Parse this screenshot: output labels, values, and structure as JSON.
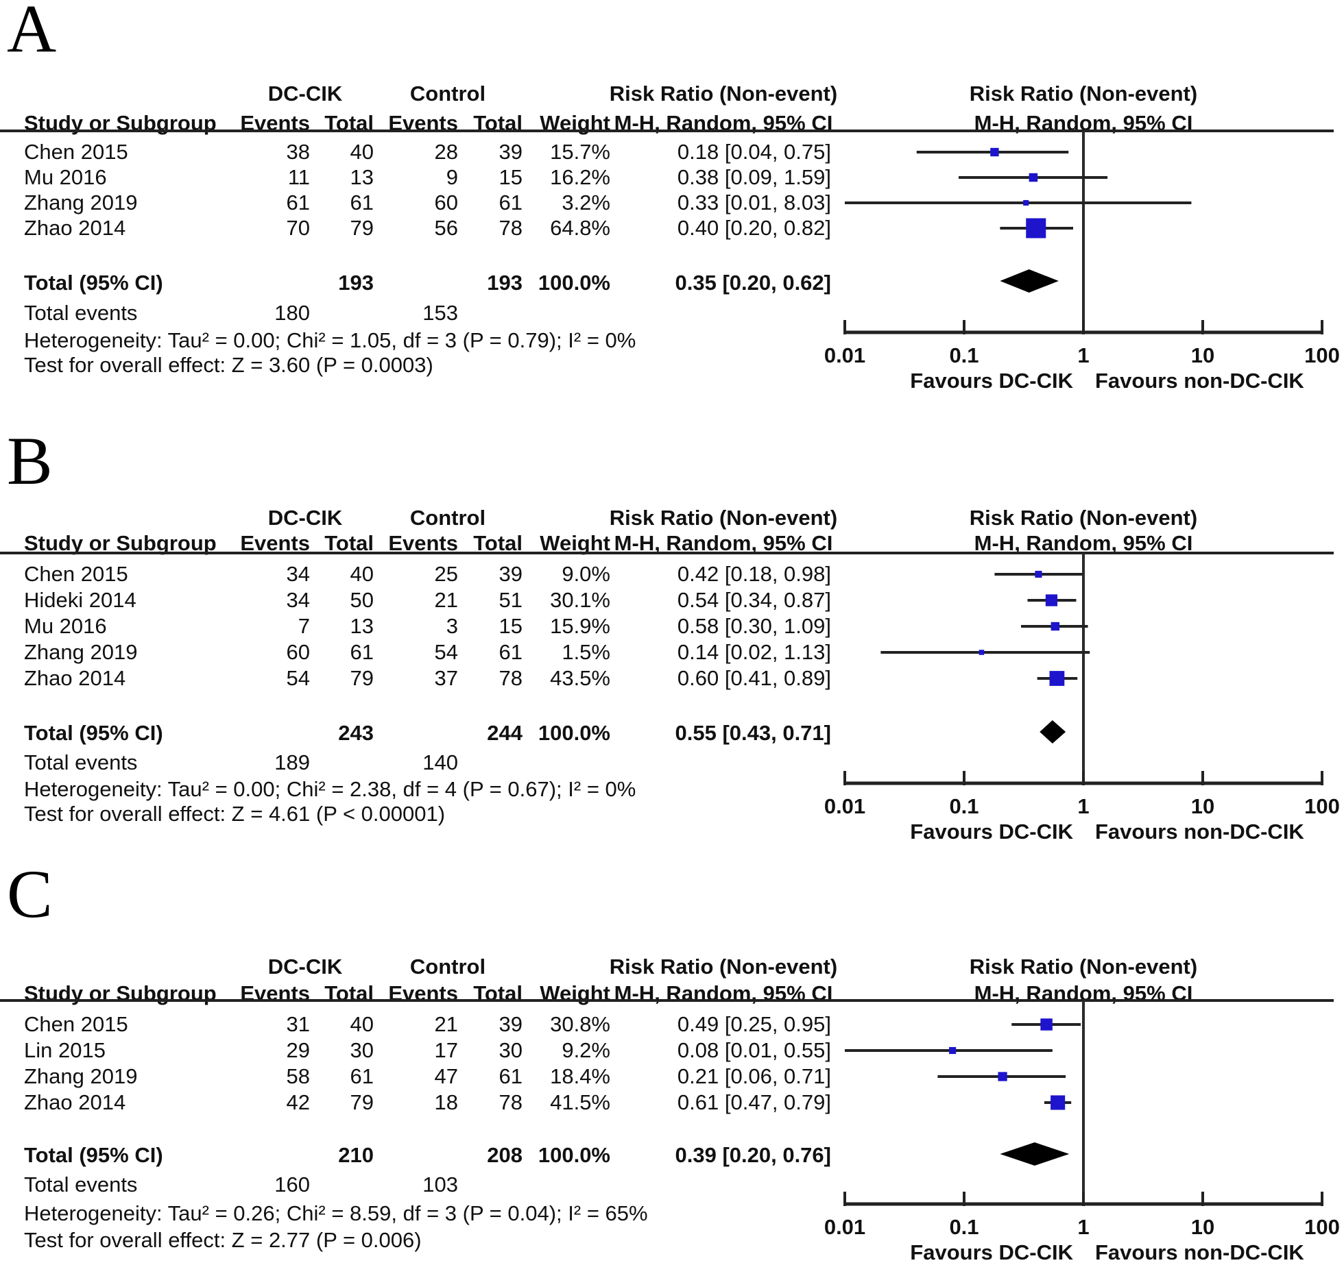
{
  "figure_type": "forest plot meta-analysis, 3 panels (RevMan style)",
  "colors": {
    "marker": "#1d14cc",
    "diamond": "#000000",
    "line": "#2b2b2b",
    "text": "#111111",
    "background": "#ffffff"
  },
  "headers": {
    "group_treatment": "DC-CIK",
    "group_control": "Control",
    "study": "Study or Subgroup",
    "events": "Events",
    "total": "Total",
    "weight": "Weight",
    "rr_title": "Risk Ratio (Non-event)",
    "rr_method": "M-H, Random, 95% CI"
  },
  "axis": {
    "scale": "log",
    "ticks": [
      "0.01",
      "0.1",
      "1",
      "10",
      "100"
    ],
    "favours_left": "Favours DC-CIK",
    "favours_right": "Favours non-DC-CIK"
  },
  "chart_data": {
    "type": "scatter",
    "subtype": "forest_plot",
    "x_scale": "log",
    "x_range": [
      0.01,
      100
    ],
    "x_ticks": [
      "0.01",
      "0.1",
      "1",
      "10",
      "100"
    ],
    "panels": [
      {
        "label": "A",
        "rows": [
          {
            "study": "Chen 2015",
            "dc_events": "38",
            "dc_total": "40",
            "ctrl_events": "28",
            "ctrl_total": "39",
            "weight": "15.7%",
            "rr": 0.18,
            "ci_low": 0.04,
            "ci_high": 0.75,
            "rr_text": "0.18 [0.04, 0.75]"
          },
          {
            "study": "Mu 2016",
            "dc_events": "11",
            "dc_total": "13",
            "ctrl_events": "9",
            "ctrl_total": "15",
            "weight": "16.2%",
            "rr": 0.38,
            "ci_low": 0.09,
            "ci_high": 1.59,
            "rr_text": "0.38 [0.09, 1.59]"
          },
          {
            "study": "Zhang 2019",
            "dc_events": "61",
            "dc_total": "61",
            "ctrl_events": "60",
            "ctrl_total": "61",
            "weight": "3.2%",
            "rr": 0.33,
            "ci_low": 0.01,
            "ci_high": 8.03,
            "rr_text": "0.33 [0.01, 8.03]"
          },
          {
            "study": "Zhao 2014",
            "dc_events": "70",
            "dc_total": "79",
            "ctrl_events": "56",
            "ctrl_total": "78",
            "weight": "64.8%",
            "rr": 0.4,
            "ci_low": 0.2,
            "ci_high": 0.82,
            "rr_text": "0.40 [0.20, 0.82]"
          }
        ],
        "total_row": {
          "label": "Total (95% CI)",
          "dc_total": "193",
          "ctrl_total": "193",
          "weight": "100.0%",
          "rr": 0.35,
          "ci_low": 0.2,
          "ci_high": 0.62,
          "rr_text": "0.35 [0.20, 0.62]"
        },
        "total_events": {
          "label": "Total events",
          "dc": "180",
          "ctrl": "153"
        },
        "heterogeneity": "Heterogeneity: Tau² = 0.00; Chi² = 1.05, df = 3 (P = 0.79); I² = 0%",
        "overall_effect": "Test for overall effect: Z = 3.60 (P = 0.0003)"
      },
      {
        "label": "B",
        "rows": [
          {
            "study": "Chen 2015",
            "dc_events": "34",
            "dc_total": "40",
            "ctrl_events": "25",
            "ctrl_total": "39",
            "weight": "9.0%",
            "rr": 0.42,
            "ci_low": 0.18,
            "ci_high": 0.98,
            "rr_text": "0.42 [0.18, 0.98]"
          },
          {
            "study": "Hideki 2014",
            "dc_events": "34",
            "dc_total": "50",
            "ctrl_events": "21",
            "ctrl_total": "51",
            "weight": "30.1%",
            "rr": 0.54,
            "ci_low": 0.34,
            "ci_high": 0.87,
            "rr_text": "0.54 [0.34, 0.87]"
          },
          {
            "study": "Mu 2016",
            "dc_events": "7",
            "dc_total": "13",
            "ctrl_events": "3",
            "ctrl_total": "15",
            "weight": "15.9%",
            "rr": 0.58,
            "ci_low": 0.3,
            "ci_high": 1.09,
            "rr_text": "0.58 [0.30, 1.09]"
          },
          {
            "study": "Zhang 2019",
            "dc_events": "60",
            "dc_total": "61",
            "ctrl_events": "54",
            "ctrl_total": "61",
            "weight": "1.5%",
            "rr": 0.14,
            "ci_low": 0.02,
            "ci_high": 1.13,
            "rr_text": "0.14 [0.02, 1.13]"
          },
          {
            "study": "Zhao 2014",
            "dc_events": "54",
            "dc_total": "79",
            "ctrl_events": "37",
            "ctrl_total": "78",
            "weight": "43.5%",
            "rr": 0.6,
            "ci_low": 0.41,
            "ci_high": 0.89,
            "rr_text": "0.60 [0.41, 0.89]"
          }
        ],
        "total_row": {
          "label": "Total (95% CI)",
          "dc_total": "243",
          "ctrl_total": "244",
          "weight": "100.0%",
          "rr": 0.55,
          "ci_low": 0.43,
          "ci_high": 0.71,
          "rr_text": "0.55 [0.43, 0.71]"
        },
        "total_events": {
          "label": "Total events",
          "dc": "189",
          "ctrl": "140"
        },
        "heterogeneity": "Heterogeneity: Tau² = 0.00; Chi² = 2.38, df = 4 (P = 0.67); I² = 0%",
        "overall_effect": "Test for overall effect: Z = 4.61 (P < 0.00001)"
      },
      {
        "label": "C",
        "rows": [
          {
            "study": "Chen 2015",
            "dc_events": "31",
            "dc_total": "40",
            "ctrl_events": "21",
            "ctrl_total": "39",
            "weight": "30.8%",
            "rr": 0.49,
            "ci_low": 0.25,
            "ci_high": 0.95,
            "rr_text": "0.49 [0.25, 0.95]"
          },
          {
            "study": "Lin 2015",
            "dc_events": "29",
            "dc_total": "30",
            "ctrl_events": "17",
            "ctrl_total": "30",
            "weight": "9.2%",
            "rr": 0.08,
            "ci_low": 0.01,
            "ci_high": 0.55,
            "rr_text": "0.08 [0.01, 0.55]"
          },
          {
            "study": "Zhang 2019",
            "dc_events": "58",
            "dc_total": "61",
            "ctrl_events": "47",
            "ctrl_total": "61",
            "weight": "18.4%",
            "rr": 0.21,
            "ci_low": 0.06,
            "ci_high": 0.71,
            "rr_text": "0.21 [0.06, 0.71]"
          },
          {
            "study": "Zhao 2014",
            "dc_events": "42",
            "dc_total": "79",
            "ctrl_events": "18",
            "ctrl_total": "78",
            "weight": "41.5%",
            "rr": 0.61,
            "ci_low": 0.47,
            "ci_high": 0.79,
            "rr_text": "0.61 [0.47, 0.79]"
          }
        ],
        "total_row": {
          "label": "Total (95% CI)",
          "dc_total": "210",
          "ctrl_total": "208",
          "weight": "100.0%",
          "rr": 0.39,
          "ci_low": 0.2,
          "ci_high": 0.76,
          "rr_text": "0.39 [0.20, 0.76]"
        },
        "total_events": {
          "label": "Total events",
          "dc": "160",
          "ctrl": "103"
        },
        "heterogeneity": "Heterogeneity: Tau² = 0.26; Chi² = 8.59, df = 3 (P = 0.04); I² = 65%",
        "overall_effect": "Test for overall effect: Z = 2.77 (P = 0.006)"
      }
    ]
  }
}
